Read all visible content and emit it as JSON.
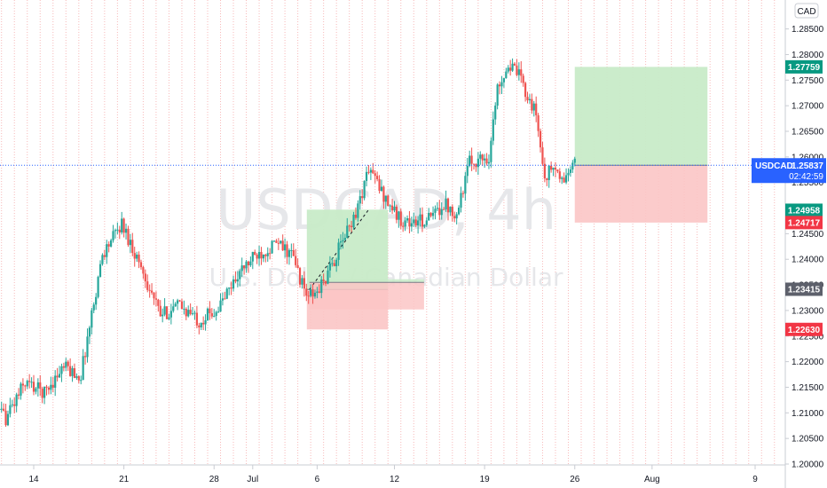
{
  "watermark": {
    "symbol_interval": "USDCAD, 4h",
    "description": "U.S. Dollar / Canadian Dollar"
  },
  "currency_button": "CAD",
  "symbol_tag": {
    "symbol": "USDCAD",
    "price": "1.25837",
    "countdown": "02:42:59",
    "color": "#2962ff"
  },
  "colors": {
    "up": "#26a69a",
    "down": "#ef5350",
    "profit_zone": "#c8ebc8",
    "loss_zone": "#fbc5c5",
    "price_line": "#2962ff",
    "profit_tag": "#089981",
    "loss_tag": "#f23645",
    "neutral_tag": "#5d606b"
  },
  "chart_data": {
    "type": "candlestick",
    "y_ticks": [
      "1.28500",
      "1.28000",
      "1.27500",
      "1.27000",
      "1.26500",
      "1.26000",
      "1.25500",
      "1.24500",
      "1.24000",
      "1.23500",
      "1.23000",
      "1.22500",
      "1.22000",
      "1.21500",
      "1.21000",
      "1.20500",
      "1.20000"
    ],
    "ylim": [
      1.2,
      1.289
    ],
    "x_ticks": [
      {
        "label": "14",
        "day": 14
      },
      {
        "label": "21",
        "day": 21
      },
      {
        "label": "28",
        "day": 28
      },
      {
        "label": "Jul",
        "day": 31
      },
      {
        "label": "6",
        "day": 36
      },
      {
        "label": "12",
        "day": 42
      },
      {
        "label": "19",
        "day": 49
      },
      {
        "label": "26",
        "day": 56
      },
      {
        "label": "Aug",
        "day": 62
      },
      {
        "label": "9",
        "day": 70
      }
    ],
    "x_axis_start": "June 10",
    "xlim_days": [
      10.5,
      73
    ],
    "price_tags": [
      {
        "value": "1.27759",
        "kind": "profit",
        "price": 1.27759
      },
      {
        "value": "1.24958",
        "kind": "profit",
        "price": 1.24958
      },
      {
        "value": "1.24717",
        "kind": "loss",
        "price": 1.24717
      },
      {
        "value": "1.23415",
        "kind": "neutral",
        "price": 1.23415
      },
      {
        "value": "1.22630",
        "kind": "loss",
        "price": 1.2263
      }
    ],
    "last_price": 1.25837,
    "positions": [
      {
        "name": "long-position-old",
        "x_start_day": 35.2,
        "x_end_day": 41.5,
        "entry": 1.2341,
        "target": 1.2497,
        "stop": 1.2263
      },
      {
        "name": "short-position-old",
        "x_start_day": 35.4,
        "x_end_day": 44.3,
        "entry": 1.2355,
        "target": 1.2302,
        "stop": 1.2361
      },
      {
        "name": "long-position-current",
        "x_start_day": 56.0,
        "x_end_day": 66.3,
        "entry": 1.25837,
        "target": 1.27759,
        "stop": 1.24717
      }
    ],
    "anchors": [
      {
        "day": 10.5,
        "price": 1.211
      },
      {
        "day": 12.0,
        "price": 1.209
      },
      {
        "day": 13.5,
        "price": 1.216
      },
      {
        "day": 15.0,
        "price": 1.214
      },
      {
        "day": 16.5,
        "price": 1.219
      },
      {
        "day": 17.8,
        "price": 1.217
      },
      {
        "day": 19.5,
        "price": 1.241
      },
      {
        "day": 21.0,
        "price": 1.247
      },
      {
        "day": 22.5,
        "price": 1.2385
      },
      {
        "day": 24.0,
        "price": 1.229
      },
      {
        "day": 25.5,
        "price": 1.231
      },
      {
        "day": 27.0,
        "price": 1.228
      },
      {
        "day": 28.5,
        "price": 1.2305
      },
      {
        "day": 30.0,
        "price": 1.237
      },
      {
        "day": 31.5,
        "price": 1.241
      },
      {
        "day": 33.0,
        "price": 1.243
      },
      {
        "day": 34.2,
        "price": 1.241
      },
      {
        "day": 35.3,
        "price": 1.233
      },
      {
        "day": 36.0,
        "price": 1.233
      },
      {
        "day": 37.0,
        "price": 1.237
      },
      {
        "day": 38.2,
        "price": 1.244
      },
      {
        "day": 39.3,
        "price": 1.25
      },
      {
        "day": 40.2,
        "price": 1.258
      },
      {
        "day": 41.2,
        "price": 1.253
      },
      {
        "day": 42.5,
        "price": 1.248
      },
      {
        "day": 43.5,
        "price": 1.247
      },
      {
        "day": 45.0,
        "price": 1.248
      },
      {
        "day": 46.0,
        "price": 1.251
      },
      {
        "day": 47.0,
        "price": 1.249
      },
      {
        "day": 48.0,
        "price": 1.259
      },
      {
        "day": 49.5,
        "price": 1.26
      },
      {
        "day": 50.2,
        "price": 1.274
      },
      {
        "day": 51.0,
        "price": 1.278
      },
      {
        "day": 51.8,
        "price": 1.276
      },
      {
        "day": 52.5,
        "price": 1.272
      },
      {
        "day": 53.2,
        "price": 1.268
      },
      {
        "day": 53.8,
        "price": 1.256
      },
      {
        "day": 54.5,
        "price": 1.258
      },
      {
        "day": 55.2,
        "price": 1.255
      },
      {
        "day": 56.0,
        "price": 1.2584
      }
    ]
  }
}
